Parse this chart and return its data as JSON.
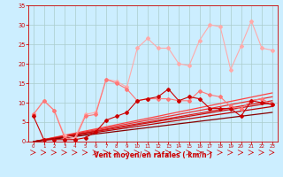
{
  "bg_color": "#cceeff",
  "grid_color": "#aacccc",
  "xlabel": "Vent moyen/en rafales ( km/h )",
  "xlabel_color": "#cc0000",
  "tick_color": "#cc0000",
  "xlim": [
    -0.5,
    23.5
  ],
  "ylim": [
    0,
    35
  ],
  "xticks": [
    0,
    1,
    2,
    3,
    4,
    5,
    6,
    7,
    8,
    9,
    10,
    11,
    12,
    13,
    14,
    15,
    16,
    17,
    18,
    19,
    20,
    21,
    22,
    23
  ],
  "yticks": [
    0,
    5,
    10,
    15,
    20,
    25,
    30,
    35
  ],
  "lines": [
    {
      "y": [
        7,
        10.5,
        8.0,
        1.5,
        1.0,
        7.0,
        7.5,
        16.0,
        15.5,
        14.0,
        24.0,
        26.5,
        24.0,
        24.0,
        20.0,
        19.5,
        26.0,
        30.0,
        29.5,
        18.5,
        24.5,
        31.0,
        24.0,
        23.5
      ],
      "color": "#ffaaaa",
      "lw": 0.8,
      "marker": "D",
      "ms": 2.0,
      "zorder": 4
    },
    {
      "y": [
        7.0,
        10.5,
        8.0,
        1.0,
        0.5,
        6.5,
        7.0,
        16.0,
        15.0,
        13.5,
        10.5,
        11.0,
        11.0,
        11.0,
        10.5,
        10.5,
        13.0,
        12.0,
        11.5,
        9.0,
        8.5,
        10.5,
        11.0,
        9.5
      ],
      "color": "#ff7777",
      "lw": 0.8,
      "marker": "D",
      "ms": 2.0,
      "zorder": 5
    },
    {
      "y": [
        6.5,
        0.5,
        0.5,
        0.5,
        0.5,
        1.0,
        2.5,
        5.5,
        6.5,
        7.5,
        10.5,
        11.0,
        11.5,
        13.5,
        10.5,
        11.5,
        11.0,
        8.5,
        8.5,
        8.5,
        6.5,
        10.5,
        10.0,
        9.5
      ],
      "color": "#cc0000",
      "lw": 0.8,
      "marker": "D",
      "ms": 2.0,
      "zorder": 5
    },
    {
      "y": [
        0.0,
        0.54,
        1.09,
        1.63,
        2.17,
        2.72,
        3.26,
        3.8,
        4.35,
        4.89,
        5.43,
        5.98,
        6.52,
        7.07,
        7.61,
        8.15,
        8.7,
        9.24,
        9.78,
        10.33,
        10.87,
        11.41,
        11.96,
        12.5
      ],
      "color": "#ff4444",
      "lw": 0.9,
      "marker": null,
      "ms": 0,
      "zorder": 3
    },
    {
      "y": [
        0.0,
        0.5,
        1.0,
        1.5,
        2.0,
        2.5,
        3.0,
        3.5,
        4.0,
        4.5,
        5.0,
        5.5,
        6.0,
        6.5,
        7.0,
        7.5,
        8.0,
        8.5,
        9.0,
        9.5,
        10.0,
        10.5,
        11.0,
        11.5
      ],
      "color": "#ee3333",
      "lw": 0.9,
      "marker": null,
      "ms": 0,
      "zorder": 3
    },
    {
      "y": [
        0.0,
        0.46,
        0.91,
        1.37,
        1.83,
        2.28,
        2.74,
        3.2,
        3.65,
        4.11,
        4.57,
        5.02,
        5.48,
        5.93,
        6.39,
        6.85,
        7.3,
        7.76,
        8.22,
        8.67,
        9.13,
        9.59,
        10.04,
        10.5
      ],
      "color": "#dd2222",
      "lw": 0.9,
      "marker": null,
      "ms": 0,
      "zorder": 3
    },
    {
      "y": [
        0.0,
        0.43,
        0.87,
        1.3,
        1.74,
        2.17,
        2.61,
        3.04,
        3.48,
        3.91,
        4.35,
        4.78,
        5.22,
        5.65,
        6.09,
        6.52,
        6.96,
        7.39,
        7.83,
        8.26,
        8.7,
        9.13,
        9.57,
        10.0
      ],
      "color": "#cc1111",
      "lw": 0.9,
      "marker": null,
      "ms": 0,
      "zorder": 3
    },
    {
      "y": [
        0.0,
        0.39,
        0.78,
        1.17,
        1.57,
        1.96,
        2.35,
        2.74,
        3.13,
        3.52,
        3.91,
        4.3,
        4.7,
        5.09,
        5.48,
        5.87,
        6.26,
        6.65,
        7.04,
        7.43,
        7.83,
        8.22,
        8.61,
        9.0
      ],
      "color": "#bb0000",
      "lw": 0.9,
      "marker": null,
      "ms": 0,
      "zorder": 3
    },
    {
      "y": [
        0.0,
        0.33,
        0.65,
        0.98,
        1.3,
        1.63,
        1.96,
        2.28,
        2.61,
        2.93,
        3.26,
        3.59,
        3.91,
        4.24,
        4.57,
        4.89,
        5.22,
        5.54,
        5.87,
        6.2,
        6.52,
        6.85,
        7.17,
        7.5
      ],
      "color": "#880000",
      "lw": 0.9,
      "marker": null,
      "ms": 0,
      "zorder": 3
    }
  ]
}
